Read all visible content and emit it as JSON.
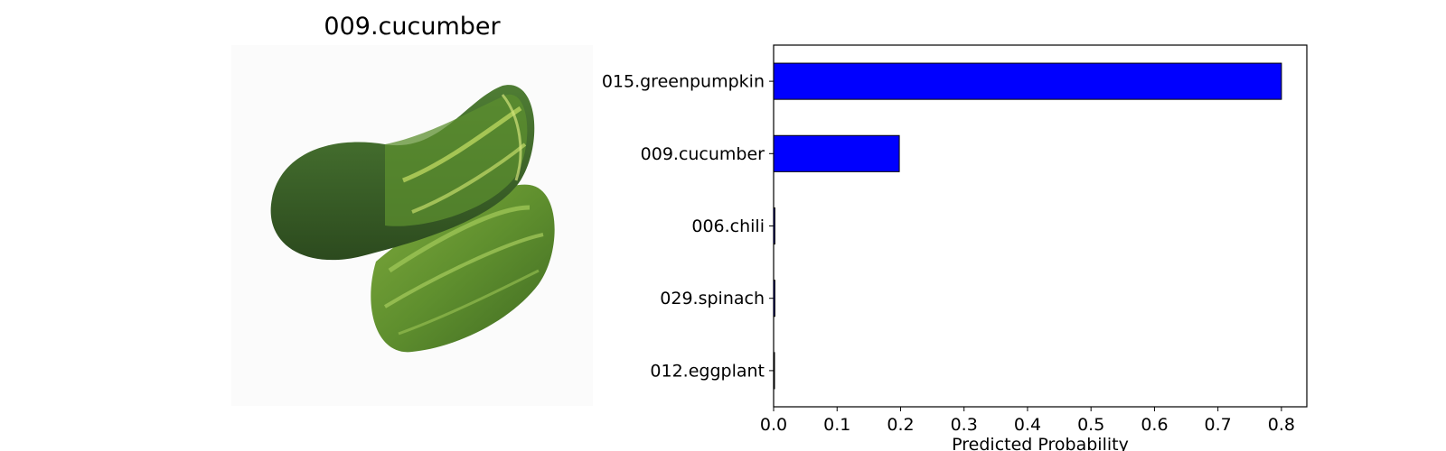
{
  "image_panel": {
    "title": "009.cucumber",
    "photo_subject": "cucumber-photo"
  },
  "chart_data": {
    "type": "bar",
    "orientation": "horizontal",
    "categories": [
      "015.greenpumpkin",
      "009.cucumber",
      "006.chili",
      "029.spinach",
      "012.eggplant"
    ],
    "values": [
      0.8,
      0.198,
      0.002,
      0.002,
      0.0005
    ],
    "xlabel": "Predicted Probability",
    "ylabel": "",
    "xlim": [
      0,
      0.84
    ],
    "xticks": [
      "0.0",
      "0.1",
      "0.2",
      "0.3",
      "0.4",
      "0.5",
      "0.6",
      "0.7",
      "0.8"
    ],
    "bar_color": "#0000ff",
    "grid": false
  }
}
